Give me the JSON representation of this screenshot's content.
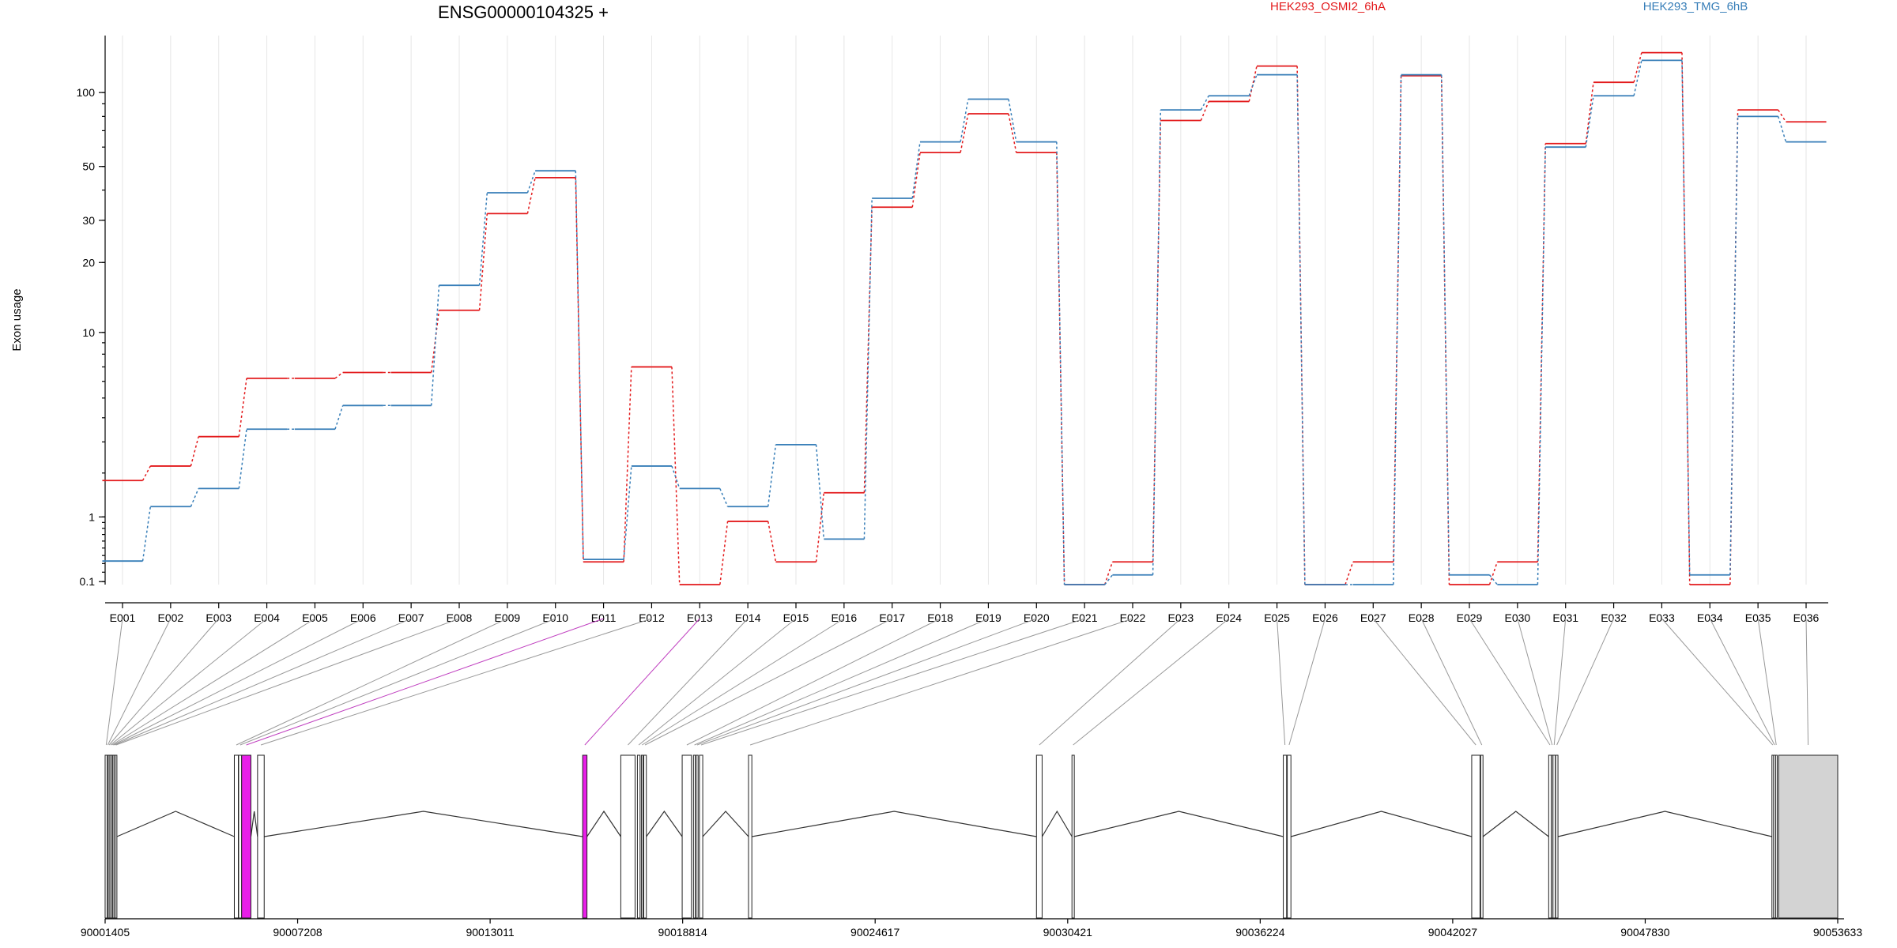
{
  "chart_data": {
    "type": "line",
    "title": "ENSG00000104325 +",
    "ylabel": "Exon usage",
    "yscale": "log1p",
    "ylim": [
      0.07,
      170
    ],
    "yticks": [
      0.1,
      1,
      10,
      20,
      30,
      50,
      100
    ],
    "ytick_labels": [
      "0.1",
      "1",
      "10",
      "20",
      "30",
      "50",
      "100"
    ],
    "grid": true,
    "legend_placement": "top",
    "categories": [
      "E001",
      "E002",
      "E003",
      "E004",
      "E005",
      "E006",
      "E007",
      "E008",
      "E009",
      "E010",
      "E011",
      "E012",
      "E013",
      "E014",
      "E015",
      "E016",
      "E017",
      "E018",
      "E019",
      "E020",
      "E021",
      "E022",
      "E023",
      "E024",
      "E025",
      "E026",
      "E027",
      "E028",
      "E029",
      "E030",
      "E031",
      "E032",
      "E033",
      "E034",
      "E035",
      "E036"
    ],
    "series": [
      {
        "name": "HEK293_OSMI2_6hA",
        "color": "#e31a1c",
        "values": [
          1.8,
          2.2,
          3.2,
          6.2,
          6.2,
          6.6,
          6.6,
          12.5,
          32,
          45,
          0.32,
          7.0,
          0.07,
          0.92,
          0.32,
          1.5,
          34,
          57,
          82,
          57,
          0.07,
          0.32,
          77,
          92,
          128,
          0.07,
          0.32,
          117,
          0.07,
          0.32,
          62,
          110,
          145,
          0.07,
          85,
          76
        ]
      },
      {
        "name": "HEK293_TMG_6hB",
        "color": "#377eb8",
        "values": [
          0.33,
          1.2,
          1.6,
          3.5,
          3.5,
          4.6,
          4.6,
          16,
          39,
          48,
          0.35,
          2.2,
          1.6,
          1.2,
          2.9,
          0.63,
          37,
          63,
          94,
          63,
          0.07,
          0.17,
          85,
          97,
          118,
          0.07,
          0.07,
          118,
          0.17,
          0.07,
          60,
          97,
          135,
          0.17,
          80,
          63
        ]
      }
    ],
    "gene_model": {
      "coord_range": [
        90001405,
        90053633
      ],
      "coord_ticks": [
        90001405,
        90007208,
        90013011,
        90018814,
        90024617,
        90030421,
        90036224,
        90042027,
        90047830,
        90053633
      ],
      "coord_tick_labels": [
        "90001405",
        "90007208",
        "90013011",
        "90018814",
        "90024617",
        "90030421",
        "90036224",
        "90042027",
        "90047830",
        "90053633"
      ],
      "exons": [
        {
          "id": "E001",
          "start": 90001405,
          "end": 90001470,
          "highlight": false
        },
        {
          "id": "E002",
          "start": 90001470,
          "end": 90001500,
          "highlight": false
        },
        {
          "id": "E003",
          "start": 90001500,
          "end": 90001545,
          "highlight": false
        },
        {
          "id": "E004",
          "start": 90001545,
          "end": 90001590,
          "highlight": false
        },
        {
          "id": "E005",
          "start": 90001590,
          "end": 90001630,
          "highlight": false
        },
        {
          "id": "E006",
          "start": 90001630,
          "end": 90001670,
          "highlight": false
        },
        {
          "id": "E007",
          "start": 90001670,
          "end": 90001710,
          "highlight": false
        },
        {
          "id": "E008",
          "start": 90001710,
          "end": 90001760,
          "highlight": false
        },
        {
          "id": "E009",
          "start": 90005300,
          "end": 90005420,
          "highlight": false
        },
        {
          "id": "E010",
          "start": 90005430,
          "end": 90005520,
          "highlight": false
        },
        {
          "id": "E011",
          "start": 90005520,
          "end": 90005800,
          "highlight": true
        },
        {
          "id": "E012",
          "start": 90006000,
          "end": 90006200,
          "highlight": false
        },
        {
          "id": "E013",
          "start": 90015800,
          "end": 90015930,
          "highlight": true
        },
        {
          "id": "E014",
          "start": 90016950,
          "end": 90017380,
          "highlight": false
        },
        {
          "id": "E015",
          "start": 90017450,
          "end": 90017530,
          "highlight": false
        },
        {
          "id": "E016",
          "start": 90017570,
          "end": 90017610,
          "highlight": false
        },
        {
          "id": "E017",
          "start": 90017640,
          "end": 90017720,
          "highlight": false
        },
        {
          "id": "E018",
          "start": 90018800,
          "end": 90019080,
          "highlight": false
        },
        {
          "id": "E019",
          "start": 90019140,
          "end": 90019200,
          "highlight": false
        },
        {
          "id": "E020",
          "start": 90019220,
          "end": 90019280,
          "highlight": false
        },
        {
          "id": "E021",
          "start": 90019320,
          "end": 90019420,
          "highlight": false
        },
        {
          "id": "E022",
          "start": 90020800,
          "end": 90020900,
          "highlight": false
        },
        {
          "id": "E023",
          "start": 90029480,
          "end": 90029650,
          "highlight": false
        },
        {
          "id": "E024",
          "start": 90030550,
          "end": 90030620,
          "highlight": false
        },
        {
          "id": "E025",
          "start": 90036920,
          "end": 90037020,
          "highlight": false
        },
        {
          "id": "E026",
          "start": 90037040,
          "end": 90037150,
          "highlight": false
        },
        {
          "id": "E027",
          "start": 90042600,
          "end": 90042850,
          "highlight": false
        },
        {
          "id": "E028",
          "start": 90042870,
          "end": 90042940,
          "highlight": false
        },
        {
          "id": "E029",
          "start": 90044920,
          "end": 90045000,
          "highlight": false
        },
        {
          "id": "E030",
          "start": 90045000,
          "end": 90045050,
          "highlight": false
        },
        {
          "id": "E031",
          "start": 90045050,
          "end": 90045120,
          "highlight": false
        },
        {
          "id": "E032",
          "start": 90045130,
          "end": 90045200,
          "highlight": false
        },
        {
          "id": "E033",
          "start": 90051650,
          "end": 90051700,
          "highlight": false
        },
        {
          "id": "E034",
          "start": 90051700,
          "end": 90051760,
          "highlight": false
        },
        {
          "id": "E035",
          "start": 90051760,
          "end": 90051800,
          "highlight": false
        },
        {
          "id": "E036",
          "start": 90051850,
          "end": 90053633,
          "highlight": false,
          "utr": true
        }
      ]
    }
  }
}
